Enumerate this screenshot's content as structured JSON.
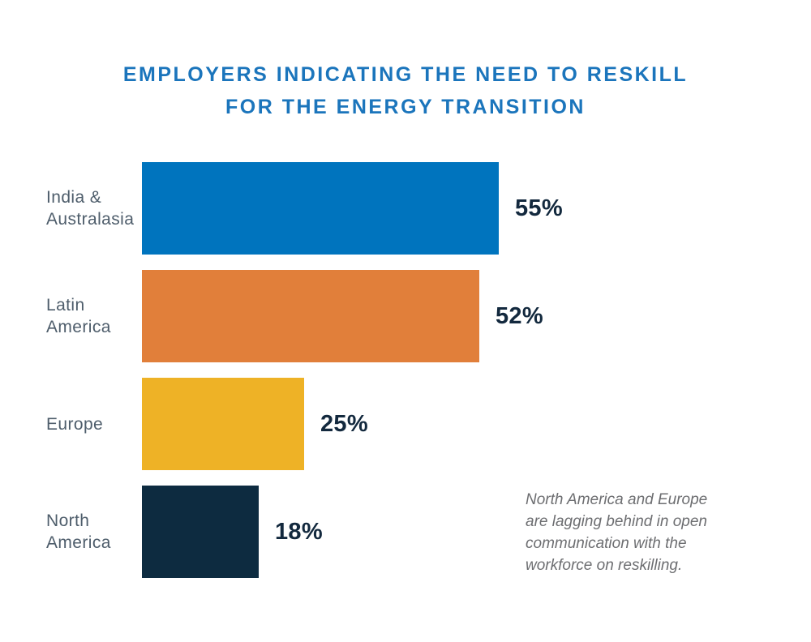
{
  "header": {
    "title_line1": "EMPLOYERS INDICATING THE NEED TO RESKILL",
    "title_line2": "FOR THE ENERGY TRANSITION"
  },
  "chart_data": {
    "type": "bar",
    "orientation": "horizontal",
    "title": "EMPLOYERS INDICATING THE NEED TO RESKILL FOR THE ENERGY TRANSITION",
    "categories": [
      "India & Australasia",
      "Latin America",
      "Europe",
      "North America"
    ],
    "values": [
      55,
      52,
      25,
      18
    ],
    "value_labels": [
      "55%",
      "52%",
      "25%",
      "18%"
    ],
    "unit": "percent of employers",
    "bar_colors": [
      "#0074BE",
      "#E17F3A",
      "#EEB226",
      "#0D2B40"
    ],
    "axes_visible": false,
    "grid": false,
    "legend": false,
    "value_label_position": "right-of-bar",
    "xlim": [
      0,
      100
    ]
  },
  "annotation": {
    "text": "North America and Europe are lagging behind in open communication with the workforce on reskilling."
  },
  "colors": {
    "title": "#1B75BC",
    "category_label": "#4E5D6B",
    "value_label": "#13293E",
    "annotation": "#6D6E71",
    "background": "#FFFFFF"
  }
}
